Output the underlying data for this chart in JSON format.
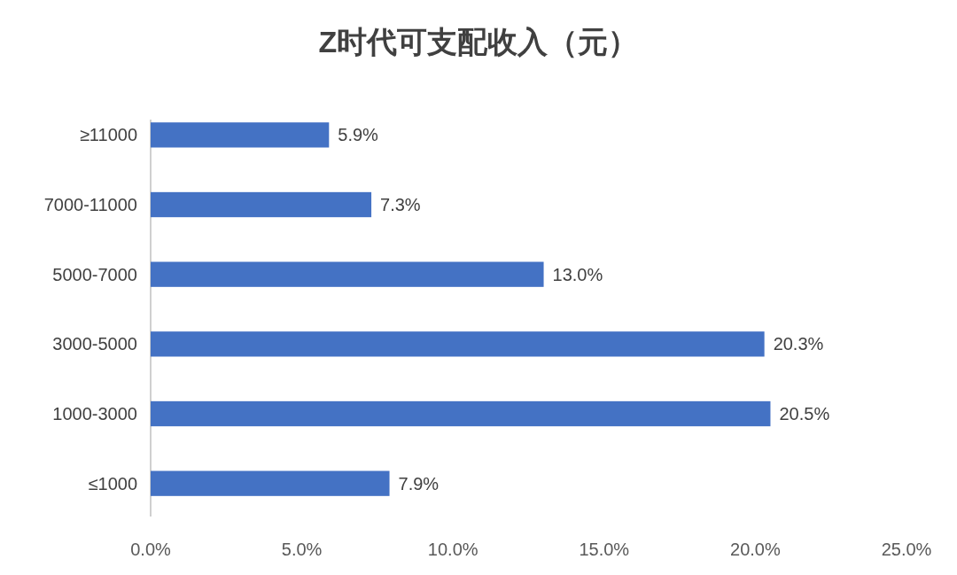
{
  "chart_data": {
    "type": "bar",
    "orientation": "horizontal",
    "title": "Z时代可支配收入（元）",
    "categories": [
      "≥11000",
      "7000-11000",
      "5000-7000",
      "3000-5000",
      "1000-3000",
      "≤1000"
    ],
    "values": [
      5.9,
      7.3,
      13.0,
      20.3,
      20.5,
      7.9
    ],
    "value_labels": [
      "5.9%",
      "7.3%",
      "13.0%",
      "20.3%",
      "20.5%",
      "7.9%"
    ],
    "color": "#4472c4",
    "xlim": [
      0,
      25
    ],
    "xticks": [
      {
        "value": 0,
        "label": "0.0%"
      },
      {
        "value": 5,
        "label": "5.0%"
      },
      {
        "value": 10,
        "label": "10.0%"
      },
      {
        "value": 15,
        "label": "15.0%"
      },
      {
        "value": 20,
        "label": "20.0%"
      },
      {
        "value": 25,
        "label": "25.0%"
      }
    ],
    "grid": false
  }
}
